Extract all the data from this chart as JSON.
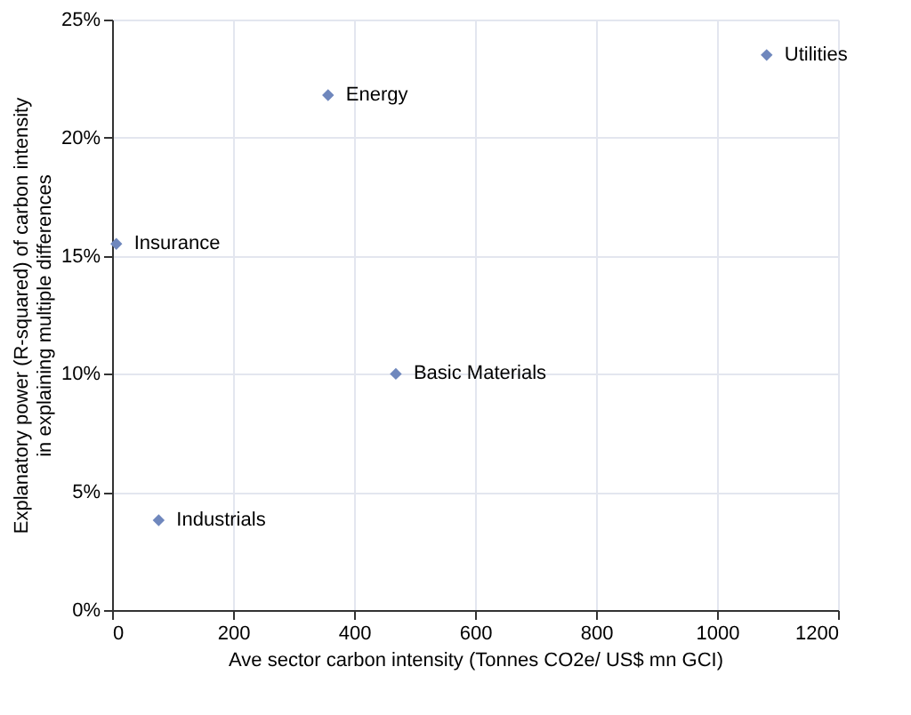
{
  "chart_data": {
    "type": "scatter",
    "xlabel": "Ave sector carbon intensity (Tonnes CO2e/ US$ mn GCI)",
    "ylabel": "Explanatory power (R-squared) of carbon intensity in explaining multiple differences",
    "series": [
      {
        "name": "Utilities",
        "color": "#6f87bd",
        "x": [
          1082
        ],
        "values": [
          23.5
        ]
      },
      {
        "name": "Energy",
        "color": "#6f87bd",
        "x": [
          357
        ],
        "values": [
          21.8
        ]
      },
      {
        "name": "Insurance",
        "color": "#6f87bd",
        "x": [
          7
        ],
        "values": [
          15.5
        ]
      },
      {
        "name": "Basic Materials",
        "color": "#6f87bd",
        "x": [
          469
        ],
        "values": [
          10.0
        ]
      },
      {
        "name": "Industrials",
        "color": "#6f87bd",
        "x": [
          77
        ],
        "values": [
          3.8
        ]
      }
    ],
    "xlim": [
      0,
      1200
    ],
    "xticks": [
      0,
      200,
      400,
      600,
      800,
      1000,
      1200
    ],
    "ylim": [
      0,
      25
    ],
    "yticks": [
      {
        "value": 0,
        "label": "0%"
      },
      {
        "value": 5,
        "label": "5%"
      },
      {
        "value": 10,
        "label": "10%"
      },
      {
        "value": 15,
        "label": "15%"
      },
      {
        "value": 20,
        "label": "20%"
      },
      {
        "value": 25,
        "label": "25%"
      }
    ],
    "grid": true,
    "marker": "diamond",
    "legend": false
  }
}
